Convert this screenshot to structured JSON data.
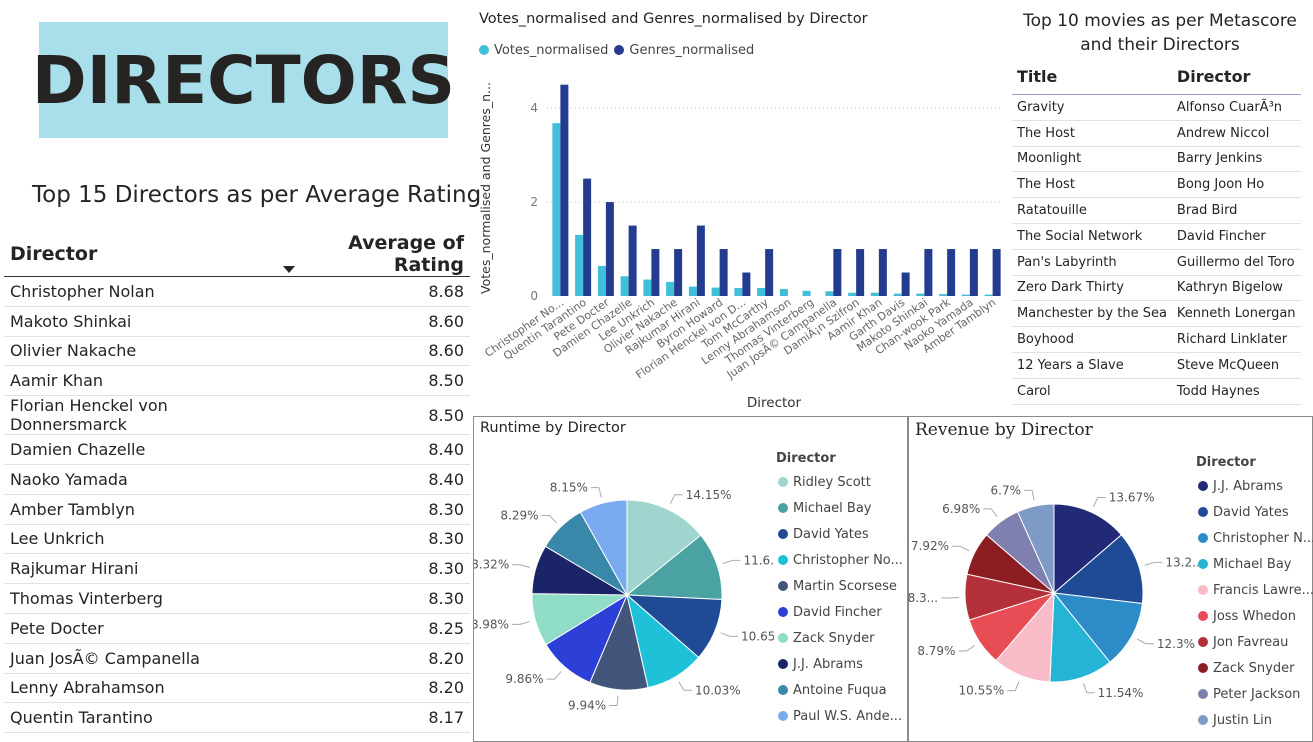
{
  "header": {
    "title": "DIRECTORS"
  },
  "rating_table": {
    "title": "Top 15 Directors as per Average Rating",
    "col_director": "Director",
    "col_rating": "Average of Rating",
    "rows": [
      {
        "director": "Christopher Nolan",
        "rating": "8.68"
      },
      {
        "director": "Makoto Shinkai",
        "rating": "8.60"
      },
      {
        "director": "Olivier Nakache",
        "rating": "8.60"
      },
      {
        "director": "Aamir Khan",
        "rating": "8.50"
      },
      {
        "director": "Florian Henckel von Donnersmarck",
        "rating": "8.50"
      },
      {
        "director": "Damien Chazelle",
        "rating": "8.40"
      },
      {
        "director": "Naoko Yamada",
        "rating": "8.40"
      },
      {
        "director": "Amber Tamblyn",
        "rating": "8.30"
      },
      {
        "director": "Lee Unkrich",
        "rating": "8.30"
      },
      {
        "director": "Rajkumar Hirani",
        "rating": "8.30"
      },
      {
        "director": "Thomas Vinterberg",
        "rating": "8.30"
      },
      {
        "director": "Pete Docter",
        "rating": "8.25"
      },
      {
        "director": "Juan JosÃ© Campanella",
        "rating": "8.20"
      },
      {
        "director": "Lenny Abrahamson",
        "rating": "8.20"
      },
      {
        "director": "Quentin Tarantino",
        "rating": "8.17"
      }
    ]
  },
  "meta_table": {
    "title_line1": "Top 10 movies as per Metascore",
    "title_line2": "and their Directors",
    "col_title": "Title",
    "col_director": "Director",
    "rows": [
      {
        "title": "Gravity",
        "director": "Alfonso CuarÃ³n"
      },
      {
        "title": "The Host",
        "director": "Andrew Niccol"
      },
      {
        "title": "Moonlight",
        "director": "Barry Jenkins"
      },
      {
        "title": "The Host",
        "director": "Bong Joon Ho"
      },
      {
        "title": "Ratatouille",
        "director": "Brad Bird"
      },
      {
        "title": "The Social Network",
        "director": "David Fincher"
      },
      {
        "title": "Pan's Labyrinth",
        "director": "Guillermo del Toro"
      },
      {
        "title": "Zero Dark Thirty",
        "director": "Kathryn Bigelow"
      },
      {
        "title": "Manchester by the Sea",
        "director": "Kenneth Lonergan"
      },
      {
        "title": "Boyhood",
        "director": "Richard Linklater"
      },
      {
        "title": "12 Years a Slave",
        "director": "Steve McQueen"
      },
      {
        "title": "Carol",
        "director": "Todd Haynes"
      }
    ]
  },
  "chart_data": [
    {
      "type": "bar",
      "title": "Votes_normalised and Genres_normalised by Director",
      "xlabel": "Director",
      "ylabel": "Votes_normalised and Genres_n...",
      "ylim": [
        0,
        4.6
      ],
      "yticks": [
        0,
        2,
        4
      ],
      "grid": true,
      "legend_position": "top-left",
      "categories": [
        "Christopher No...",
        "Quentin Tarantino",
        "Pete Docter",
        "Damien Chazelle",
        "Lee Unkrich",
        "Olivier Nakache",
        "Rajkumar Hirani",
        "Byron Howard",
        "Florian Henckel von D...",
        "Tom McCarthy",
        "Lenny Abrahamson",
        "Thomas Vinterberg",
        "Juan JosÃ© Campanella",
        "DamiÃ¡n Szifron",
        "Aamir Khan",
        "Garth Davis",
        "Makoto Shinkai",
        "Chan-wook Park",
        "Naoko Yamada",
        "Amber Tamblyn"
      ],
      "series": [
        {
          "name": "Votes_normalised",
          "color": "#41bfd9",
          "values": [
            3.68,
            1.3,
            0.64,
            0.42,
            0.35,
            0.3,
            0.2,
            0.18,
            0.17,
            0.17,
            0.15,
            0.11,
            0.1,
            0.07,
            0.07,
            0.05,
            0.05,
            0.04,
            0.03,
            0.03
          ]
        },
        {
          "name": "Genres_normalised",
          "color": "#243c8f",
          "values": [
            4.5,
            2.5,
            2.0,
            1.5,
            1.0,
            1.0,
            1.5,
            1.0,
            0.5,
            1.0,
            0.0,
            0.0,
            1.0,
            1.0,
            1.0,
            0.5,
            1.0,
            1.0,
            1.0,
            1.0
          ]
        }
      ]
    },
    {
      "type": "pie",
      "title": "Runtime by Director",
      "legend_title": "Director",
      "legend_position": "right",
      "slices": [
        {
          "label": "Ridley Scott",
          "value": 14.15,
          "text": "14.15%",
          "color": "#9fd4cf"
        },
        {
          "label": "Michael Bay",
          "value": 11.6,
          "text": "11.6...",
          "color": "#4aa3a2"
        },
        {
          "label": "David Yates",
          "value": 10.65,
          "text": "10.65%",
          "color": "#1f4b96"
        },
        {
          "label": "Christopher No...",
          "value": 10.03,
          "text": "10.03%",
          "color": "#1fc1d9"
        },
        {
          "label": "Martin Scorsese",
          "value": 9.94,
          "text": "9.94%",
          "color": "#42557b"
        },
        {
          "label": "David Fincher",
          "value": 9.86,
          "text": "9.86%",
          "color": "#2c40d8"
        },
        {
          "label": "Zack Snyder",
          "value": 8.98,
          "text": "8.98%",
          "color": "#8fdcc7"
        },
        {
          "label": "J.J. Abrams",
          "value": 8.32,
          "text": "8.32%",
          "color": "#1b2466"
        },
        {
          "label": "Antoine Fuqua",
          "value": 8.29,
          "text": "8.29%",
          "color": "#3a88a9"
        },
        {
          "label": "Paul W.S. Ande...",
          "value": 8.15,
          "text": "8.15%",
          "color": "#7aaaf0"
        }
      ]
    },
    {
      "type": "pie",
      "title": "Revenue by Director",
      "legend_title": "Director",
      "legend_position": "right",
      "slices": [
        {
          "label": "J.J. Abrams",
          "value": 13.67,
          "text": "13.67%",
          "color": "#222a78"
        },
        {
          "label": "David Yates",
          "value": 13.2,
          "text": "13.2...",
          "color": "#1f4b96"
        },
        {
          "label": "Christopher N...",
          "value": 12.3,
          "text": "12.3%",
          "color": "#2d8cc8"
        },
        {
          "label": "Michael Bay",
          "value": 11.54,
          "text": "11.54%",
          "color": "#25b3d6"
        },
        {
          "label": "Francis Lawre...",
          "value": 10.55,
          "text": "10.55%",
          "color": "#f8bcc8"
        },
        {
          "label": "Joss Whedon",
          "value": 8.79,
          "text": "8.79%",
          "color": "#e84c55"
        },
        {
          "label": "Jon Favreau",
          "value": 8.3,
          "text": "8.3...",
          "color": "#b3303a"
        },
        {
          "label": "Zack Snyder",
          "value": 7.92,
          "text": "7.92%",
          "color": "#8c1d22"
        },
        {
          "label": "Peter Jackson",
          "value": 6.98,
          "text": "6.98%",
          "color": "#8080b0"
        },
        {
          "label": "Justin Lin",
          "value": 6.7,
          "text": "6.7%",
          "color": "#7d9bc4"
        }
      ]
    }
  ]
}
